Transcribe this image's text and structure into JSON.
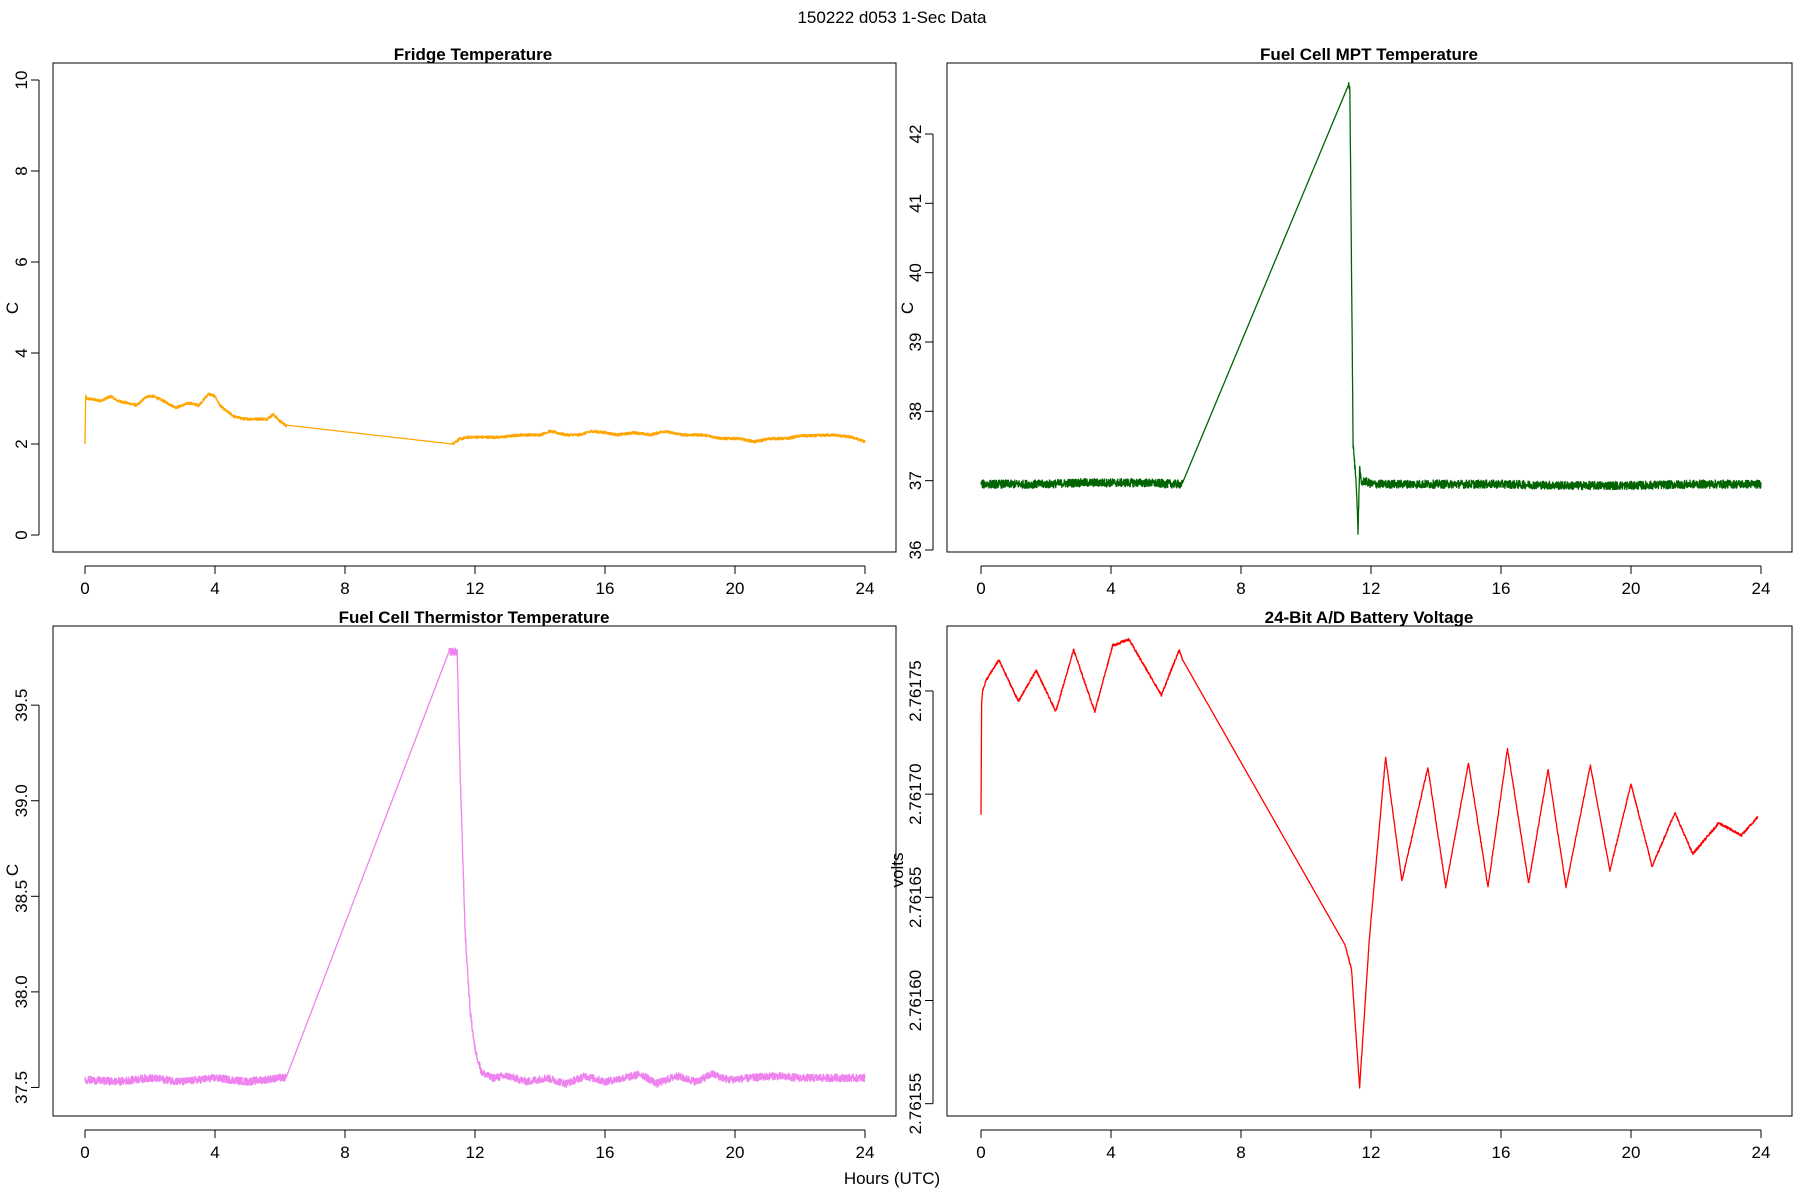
{
  "figure": {
    "title": "150222   d053   1-Sec Data",
    "shared_xlabel": "Hours (UTC)"
  },
  "chart_data": [
    {
      "id": "fridge",
      "type": "line",
      "title": "Fridge Temperature",
      "xlabel": "",
      "ylabel": "C",
      "color": "#FFA500",
      "xlim": [
        0,
        24
      ],
      "ylim": [
        0,
        10
      ],
      "xticks": [
        0,
        4,
        8,
        12,
        16,
        20,
        24
      ],
      "yticks": [
        0,
        2,
        4,
        6,
        8,
        10
      ],
      "ytick_labels": [
        "0",
        "2",
        "4",
        "6",
        "8",
        "10"
      ],
      "noise": 0.03,
      "x": [
        0,
        0.02,
        0.05,
        0.5,
        0.8,
        1.0,
        1.3,
        1.6,
        1.9,
        2.1,
        2.4,
        2.8,
        3.2,
        3.5,
        3.8,
        4.0,
        4.15,
        4.3,
        4.6,
        4.9,
        5.2,
        5.6,
        5.8,
        6.0,
        6.2,
        11.3,
        11.5,
        11.8,
        12.2,
        12.8,
        13.4,
        14.0,
        14.3,
        14.8,
        15.2,
        15.6,
        16.0,
        16.4,
        16.9,
        17.4,
        17.8,
        18.4,
        19.0,
        19.6,
        20.1,
        20.6,
        21.1,
        21.6,
        22.0,
        22.4,
        23.0,
        23.6,
        24.0
      ],
      "y": [
        2.0,
        3.05,
        3.0,
        2.95,
        3.05,
        2.95,
        2.9,
        2.85,
        3.05,
        3.05,
        2.95,
        2.8,
        2.9,
        2.85,
        3.1,
        3.05,
        2.85,
        2.75,
        2.6,
        2.55,
        2.55,
        2.55,
        2.65,
        2.5,
        2.4,
        2.0,
        2.1,
        2.15,
        2.15,
        2.15,
        2.2,
        2.2,
        2.28,
        2.2,
        2.2,
        2.28,
        2.25,
        2.2,
        2.25,
        2.2,
        2.28,
        2.2,
        2.2,
        2.12,
        2.12,
        2.05,
        2.12,
        2.12,
        2.18,
        2.18,
        2.2,
        2.15,
        2.05
      ]
    },
    {
      "id": "mpt",
      "type": "line",
      "title": "Fuel Cell MPT Temperature",
      "xlabel": "",
      "ylabel": "C",
      "color": "#006400",
      "xlim": [
        0,
        24
      ],
      "ylim": [
        36,
        42.75
      ],
      "xticks": [
        0,
        4,
        8,
        12,
        16,
        20,
        24
      ],
      "yticks": [
        36,
        37,
        38,
        39,
        40,
        41,
        42
      ],
      "ytick_labels": [
        "36",
        "37",
        "38",
        "39",
        "40",
        "41",
        "42"
      ],
      "noise": 0.06,
      "x": [
        0,
        1,
        2,
        3,
        4,
        5,
        6,
        6.2,
        11.3,
        11.35,
        11.45,
        11.55,
        11.6,
        11.65,
        11.7,
        11.8,
        12,
        14,
        16,
        18,
        20,
        22,
        24
      ],
      "y": [
        36.95,
        36.95,
        36.95,
        36.97,
        36.97,
        36.97,
        36.95,
        36.95,
        42.7,
        42.65,
        37.5,
        36.95,
        36.25,
        37.2,
        36.95,
        37.0,
        36.95,
        36.95,
        36.95,
        36.93,
        36.93,
        36.95,
        36.95
      ]
    },
    {
      "id": "thermistor",
      "type": "line",
      "title": "Fuel Cell Thermistor Temperature",
      "xlabel": "",
      "ylabel": "C",
      "color": "#EE82EE",
      "xlim": [
        0,
        24
      ],
      "ylim": [
        37.45,
        39.82
      ],
      "xticks": [
        0,
        4,
        8,
        12,
        16,
        20,
        24
      ],
      "yticks": [
        37.5,
        38.0,
        38.5,
        39.0,
        39.5
      ],
      "ytick_labels": [
        "37.5",
        "38.0",
        "38.5",
        "39.0",
        "39.5"
      ],
      "noise": 0.02,
      "x": [
        0,
        1,
        2,
        3,
        4,
        5,
        6,
        6.2,
        11.2,
        11.35,
        11.45,
        11.55,
        11.7,
        11.85,
        12.0,
        12.2,
        12.5,
        13.0,
        13.6,
        14.2,
        14.8,
        15.4,
        16.0,
        16.6,
        17.1,
        17.6,
        18.2,
        18.8,
        19.3,
        19.8,
        20.5,
        21.2,
        22,
        23,
        24
      ],
      "y": [
        37.54,
        37.53,
        37.55,
        37.53,
        37.55,
        37.53,
        37.55,
        37.55,
        39.78,
        39.78,
        39.78,
        39.1,
        38.3,
        37.9,
        37.7,
        37.58,
        37.55,
        37.56,
        37.53,
        37.55,
        37.52,
        37.56,
        37.53,
        37.55,
        37.57,
        37.52,
        37.56,
        37.53,
        37.57,
        37.54,
        37.55,
        37.56,
        37.55,
        37.55,
        37.55
      ]
    },
    {
      "id": "battery",
      "type": "line",
      "title": "24-Bit A/D Battery Voltage",
      "xlabel": "",
      "ylabel": "volts",
      "color": "#FF0000",
      "xlim": [
        0,
        24
      ],
      "ylim": [
        2.761545,
        2.761781
      ],
      "xticks": [
        0,
        4,
        8,
        12,
        16,
        20,
        24
      ],
      "yticks": [
        2.76155,
        2.7616,
        2.76165,
        2.7617,
        2.76175
      ],
      "ytick_labels": [
        "2.76155",
        "2.76160",
        "2.76165",
        "2.76170",
        "2.76175"
      ],
      "noise": 6e-07,
      "x": [
        0,
        0.02,
        0.05,
        0.15,
        0.55,
        1.15,
        1.7,
        2.3,
        2.85,
        3.5,
        4.05,
        4.55,
        5.55,
        6.1,
        6.2,
        11.2,
        11.4,
        11.65,
        11.95,
        12.45,
        12.95,
        13.75,
        14.3,
        15.0,
        15.6,
        16.2,
        16.85,
        17.45,
        18.0,
        18.75,
        19.35,
        20.0,
        20.65,
        21.35,
        21.9,
        22.7,
        23.4,
        23.9
      ],
      "y": [
        2.76169,
        2.761745,
        2.76175,
        2.761755,
        2.761765,
        2.761745,
        2.76176,
        2.76174,
        2.76177,
        2.76174,
        2.761772,
        2.761775,
        2.761748,
        2.76177,
        2.761765,
        2.761627,
        2.761615,
        2.761558,
        2.76163,
        2.761718,
        2.761658,
        2.761713,
        2.761655,
        2.761715,
        2.761655,
        2.761722,
        2.761657,
        2.761712,
        2.761655,
        2.761714,
        2.761663,
        2.761705,
        2.761665,
        2.761691,
        2.761671,
        2.761686,
        2.76168,
        2.761689
      ]
    }
  ]
}
